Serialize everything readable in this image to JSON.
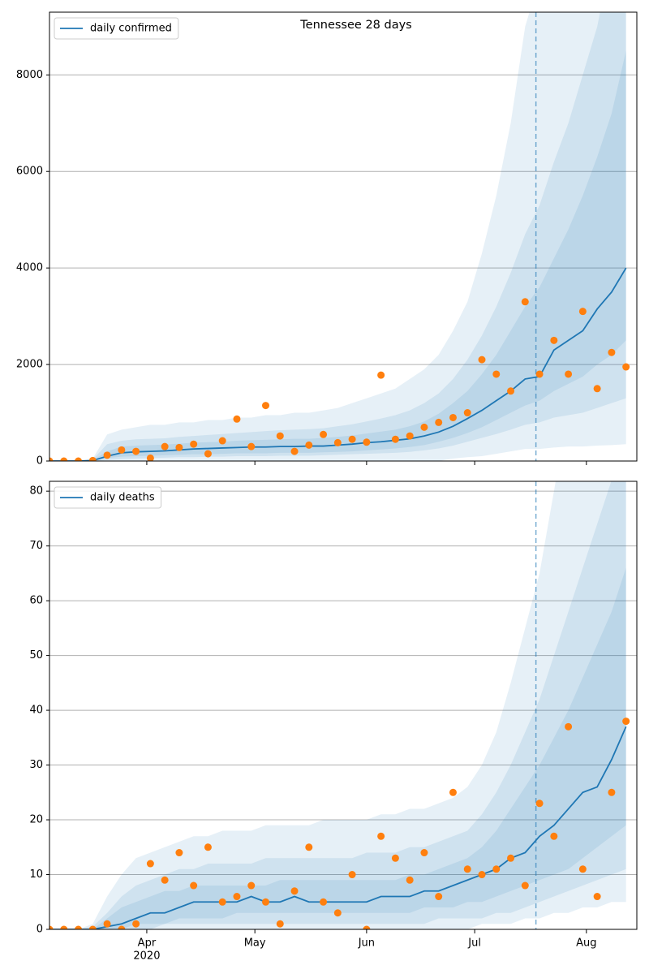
{
  "chart_data": [
    {
      "type": "line",
      "title": "Tennessee 28 days",
      "x": [
        65,
        69,
        73,
        77,
        81,
        85,
        89,
        93,
        97,
        101,
        105,
        109,
        113,
        117,
        121,
        125,
        129,
        133,
        137,
        141,
        145,
        149,
        153,
        157,
        161,
        165,
        169,
        173,
        177,
        181,
        185,
        189,
        193,
        197,
        201,
        205,
        209,
        213,
        217,
        221,
        225
      ],
      "xlim": [
        65,
        228
      ],
      "xticks": [
        92,
        122,
        153,
        183,
        214
      ],
      "ylim": [
        0,
        9300
      ],
      "yticks": [
        0,
        2000,
        4000,
        6000,
        8000
      ],
      "grid": true,
      "legend": "upper left",
      "forecast_start": 200,
      "series": [
        {
          "name": "daily confirmed",
          "color": "#1f77b4",
          "values": [
            0,
            0,
            0,
            10,
            100,
            170,
            190,
            200,
            210,
            230,
            250,
            260,
            270,
            280,
            290,
            290,
            300,
            300,
            310,
            310,
            330,
            350,
            380,
            400,
            430,
            460,
            520,
            600,
            720,
            880,
            1050,
            1250,
            1450,
            1700,
            1750,
            2300,
            2500,
            2700,
            3150,
            3500,
            4000
          ]
        }
      ],
      "observed": {
        "color": "#ff7f0e",
        "values": [
          0,
          0,
          0,
          10,
          120,
          230,
          200,
          60,
          300,
          280,
          350,
          150,
          420,
          870,
          300,
          1150,
          520,
          200,
          330,
          550,
          380,
          450,
          390,
          1780,
          450,
          520,
          700,
          800,
          900,
          1000,
          2100,
          1800,
          1450,
          3300,
          1800,
          2500,
          1800,
          3100,
          1500,
          2250,
          1950
        ]
      },
      "bands": [
        {
          "lower": [
            0,
            0,
            0,
            0,
            0,
            0,
            0,
            0,
            0,
            0,
            0,
            0,
            0,
            0,
            0,
            0,
            0,
            0,
            0,
            0,
            0,
            0,
            0,
            0,
            0,
            0,
            0,
            0,
            50,
            80,
            100,
            150,
            200,
            250,
            250,
            280,
            300,
            300,
            320,
            330,
            350
          ],
          "upper": [
            0,
            0,
            0,
            50,
            550,
            650,
            700,
            750,
            750,
            800,
            800,
            850,
            850,
            900,
            900,
            950,
            950,
            1000,
            1000,
            1050,
            1100,
            1200,
            1300,
            1400,
            1500,
            1700,
            1900,
            2200,
            2700,
            3300,
            4300,
            5500,
            7000,
            9000,
            10000,
            11500,
            13000,
            14500,
            16000,
            17500,
            19000
          ]
        },
        {
          "lower": [
            0,
            0,
            0,
            0,
            20,
            40,
            50,
            60,
            70,
            80,
            80,
            90,
            90,
            100,
            100,
            100,
            110,
            110,
            110,
            120,
            130,
            140,
            150,
            160,
            170,
            190,
            220,
            260,
            320,
            400,
            480,
            560,
            650,
            750,
            800,
            900,
            950,
            1000,
            1100,
            1200,
            1300
          ],
          "upper": [
            0,
            0,
            0,
            30,
            350,
            420,
            450,
            460,
            470,
            500,
            520,
            540,
            560,
            580,
            600,
            620,
            640,
            650,
            660,
            680,
            720,
            760,
            820,
            880,
            950,
            1050,
            1200,
            1400,
            1700,
            2100,
            2600,
            3200,
            3900,
            4700,
            5300,
            6200,
            7000,
            8000,
            9000,
            10500,
            12000
          ]
        },
        {
          "lower": [
            0,
            0,
            0,
            5,
            60,
            90,
            100,
            110,
            120,
            130,
            140,
            140,
            150,
            160,
            160,
            160,
            170,
            170,
            170,
            180,
            190,
            200,
            220,
            240,
            260,
            290,
            330,
            400,
            480,
            580,
            700,
            850,
            1000,
            1150,
            1250,
            1450,
            1600,
            1750,
            2000,
            2200,
            2500
          ],
          "upper": [
            0,
            0,
            0,
            15,
            200,
            300,
            320,
            330,
            340,
            360,
            380,
            390,
            400,
            420,
            430,
            440,
            450,
            460,
            460,
            480,
            500,
            530,
            570,
            610,
            650,
            720,
            820,
            980,
            1200,
            1450,
            1800,
            2200,
            2700,
            3200,
            3600,
            4200,
            4800,
            5500,
            6300,
            7200,
            8500
          ]
        }
      ]
    },
    {
      "type": "line",
      "x": [
        65,
        69,
        73,
        77,
        81,
        85,
        89,
        93,
        97,
        101,
        105,
        109,
        113,
        117,
        121,
        125,
        129,
        133,
        137,
        141,
        145,
        149,
        153,
        157,
        161,
        165,
        169,
        173,
        177,
        181,
        185,
        189,
        193,
        197,
        201,
        205,
        209,
        213,
        217,
        221,
        225
      ],
      "xlim": [
        65,
        228
      ],
      "xticks": [
        {
          "value": 92,
          "label": "Apr"
        },
        {
          "value": 122,
          "label": "May"
        },
        {
          "value": 153,
          "label": "Jun"
        },
        {
          "value": 183,
          "label": "Jul"
        },
        {
          "value": 214,
          "label": "Aug"
        }
      ],
      "x_sublabel": "2020",
      "ylim": [
        0,
        81.8
      ],
      "yticks": [
        0,
        10,
        20,
        30,
        40,
        50,
        60,
        70,
        80
      ],
      "grid": true,
      "legend": "upper left",
      "forecast_start": 200,
      "series": [
        {
          "name": "daily deaths",
          "color": "#1f77b4",
          "values": [
            0,
            0,
            0,
            0,
            0.5,
            1,
            2,
            3,
            3,
            4,
            5,
            5,
            5,
            5,
            6,
            5,
            5,
            6,
            5,
            5,
            5,
            5,
            5,
            6,
            6,
            6,
            7,
            7,
            8,
            9,
            10,
            11,
            13,
            14,
            17,
            19,
            22,
            25,
            26,
            31,
            37
          ]
        }
      ],
      "observed": {
        "color": "#ff7f0e",
        "values": [
          0,
          0,
          0,
          0,
          1,
          0,
          1,
          12,
          9,
          14,
          8,
          15,
          5,
          6,
          8,
          5,
          1,
          7,
          15,
          5,
          3,
          10,
          0,
          17,
          13,
          9,
          14,
          6,
          25,
          11,
          10,
          11,
          13,
          8,
          23,
          17,
          37,
          11,
          6,
          25,
          38
        ]
      },
      "bands": [
        {
          "lower": [
            0,
            0,
            0,
            0,
            0,
            0,
            0,
            0,
            0,
            0,
            0,
            0,
            0,
            0,
            0,
            0,
            0,
            0,
            0,
            0,
            0,
            0,
            0,
            0,
            0,
            0,
            0,
            0,
            0,
            0,
            1,
            1,
            1,
            2,
            2,
            3,
            3,
            4,
            4,
            5,
            5
          ],
          "upper": [
            0,
            0,
            0,
            1,
            6,
            10,
            13,
            14,
            15,
            16,
            17,
            17,
            18,
            18,
            18,
            19,
            19,
            19,
            19,
            20,
            20,
            20,
            20,
            21,
            21,
            22,
            22,
            23,
            24,
            26,
            30,
            36,
            45,
            55,
            65,
            80,
            95,
            110,
            125,
            140,
            160
          ]
        },
        {
          "lower": [
            0,
            0,
            0,
            0,
            0,
            0,
            0,
            0,
            1,
            1,
            1,
            1,
            1,
            1,
            1,
            1,
            1,
            1,
            1,
            1,
            1,
            1,
            1,
            1,
            1,
            1,
            1,
            2,
            2,
            2,
            2,
            3,
            3,
            4,
            5,
            6,
            7,
            8,
            9,
            10,
            11
          ],
          "upper": [
            0,
            0,
            0,
            0.5,
            3,
            6,
            8,
            9,
            10,
            11,
            11,
            12,
            12,
            12,
            12,
            13,
            13,
            13,
            13,
            13,
            13,
            13,
            14,
            14,
            14,
            15,
            15,
            16,
            17,
            18,
            21,
            25,
            30,
            36,
            42,
            50,
            58,
            66,
            74,
            82,
            90
          ]
        },
        {
          "lower": [
            0,
            0,
            0,
            0,
            0,
            0,
            1,
            1,
            1,
            2,
            2,
            2,
            2,
            3,
            3,
            3,
            3,
            3,
            3,
            3,
            3,
            3,
            3,
            3,
            3,
            3,
            4,
            4,
            4,
            5,
            5,
            6,
            7,
            8,
            9,
            10,
            11,
            13,
            15,
            17,
            19
          ],
          "upper": [
            0,
            0,
            0,
            0,
            2,
            4,
            5,
            6,
            7,
            7,
            8,
            8,
            8,
            8,
            8,
            8,
            9,
            9,
            9,
            9,
            9,
            9,
            9,
            9,
            9,
            10,
            10,
            11,
            12,
            13,
            15,
            18,
            22,
            26,
            30,
            35,
            40,
            46,
            52,
            58,
            66
          ]
        }
      ]
    }
  ]
}
